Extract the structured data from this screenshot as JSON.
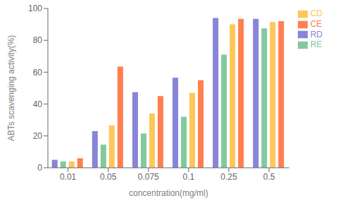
{
  "chart_data": {
    "type": "bar",
    "xlabel": "concentration(mg/ml)",
    "ylabel": "ABTs scavenging activity(%)",
    "categories": [
      "0.01",
      "0.05",
      "0.075",
      "0.1",
      "0.25",
      "0.5"
    ],
    "series": [
      {
        "name": "RD",
        "color": "#8884d8",
        "values": [
          5.0,
          23.0,
          47.5,
          56.5,
          94.0,
          93.5
        ]
      },
      {
        "name": "RE",
        "color": "#82ca9d",
        "values": [
          4.0,
          14.5,
          21.5,
          32.0,
          71.0,
          87.5
        ]
      },
      {
        "name": "CD",
        "color": "#ffc658",
        "values": [
          4.0,
          26.5,
          34.0,
          47.0,
          90.0,
          91.5
        ]
      },
      {
        "name": "CE",
        "color": "#ff7f50",
        "values": [
          6.0,
          63.5,
          45.0,
          55.0,
          93.5,
          92.0
        ]
      }
    ],
    "ylim": [
      0,
      100
    ],
    "yticks": [
      0,
      20,
      40,
      60,
      80,
      100
    ],
    "grid": false,
    "legend": "right"
  }
}
